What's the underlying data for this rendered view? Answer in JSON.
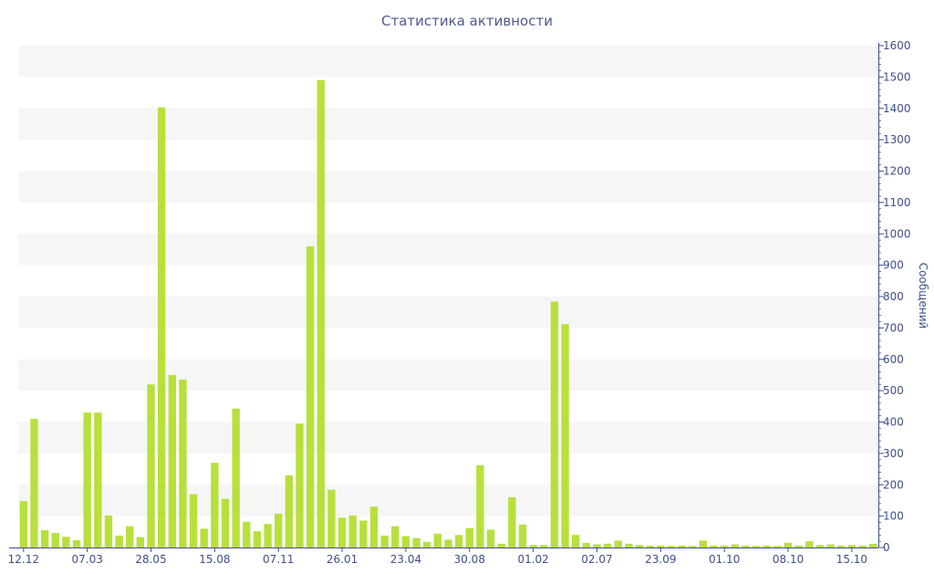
{
  "chart_data": {
    "type": "bar",
    "title": "Статистика активности",
    "ylabel": "Сообщений",
    "xlabel": "",
    "ylim": [
      0,
      1600
    ],
    "y_ticks": [
      0,
      100,
      200,
      300,
      400,
      500,
      600,
      700,
      800,
      900,
      1000,
      1100,
      1200,
      1300,
      1400,
      1500,
      1600
    ],
    "y_axis_side": "right",
    "grid": "alternating horizontal bands",
    "x_tick_labels": [
      {
        "index": 0,
        "label": "12.12"
      },
      {
        "index": 6,
        "label": "07.03"
      },
      {
        "index": 12,
        "label": "28.05"
      },
      {
        "index": 18,
        "label": "15.08"
      },
      {
        "index": 24,
        "label": "07.11"
      },
      {
        "index": 30,
        "label": "26.01"
      },
      {
        "index": 36,
        "label": "23.04"
      },
      {
        "index": 42,
        "label": "30.08"
      },
      {
        "index": 48,
        "label": "01.02"
      },
      {
        "index": 54,
        "label": "02.07"
      },
      {
        "index": 60,
        "label": "23.09"
      },
      {
        "index": 66,
        "label": "01.10"
      },
      {
        "index": 72,
        "label": "08.10"
      },
      {
        "index": 78,
        "label": "15.10"
      }
    ],
    "series": [
      {
        "values": [
          148,
          410,
          55,
          46,
          34,
          23,
          430,
          430,
          102,
          38,
          68,
          33,
          520,
          1403,
          550,
          535,
          170,
          60,
          270,
          155,
          443,
          82,
          52,
          75,
          108,
          230,
          395,
          960,
          1490,
          184,
          95,
          102,
          86,
          130,
          38,
          68,
          36,
          30,
          18,
          44,
          25,
          40,
          62,
          262,
          57,
          12,
          160,
          73,
          8,
          8,
          784,
          712,
          40,
          15,
          10,
          12,
          22,
          12,
          8,
          6,
          6,
          5,
          6,
          5,
          22,
          6,
          6,
          10,
          6,
          5,
          6,
          5,
          15,
          6,
          20,
          8,
          10,
          6,
          8,
          6,
          12
        ]
      }
    ],
    "colors": {
      "bar": "#b8e03c",
      "band": "#f6f6f6",
      "axis": "#3d4f8a",
      "text": "#3d4f8a"
    }
  }
}
